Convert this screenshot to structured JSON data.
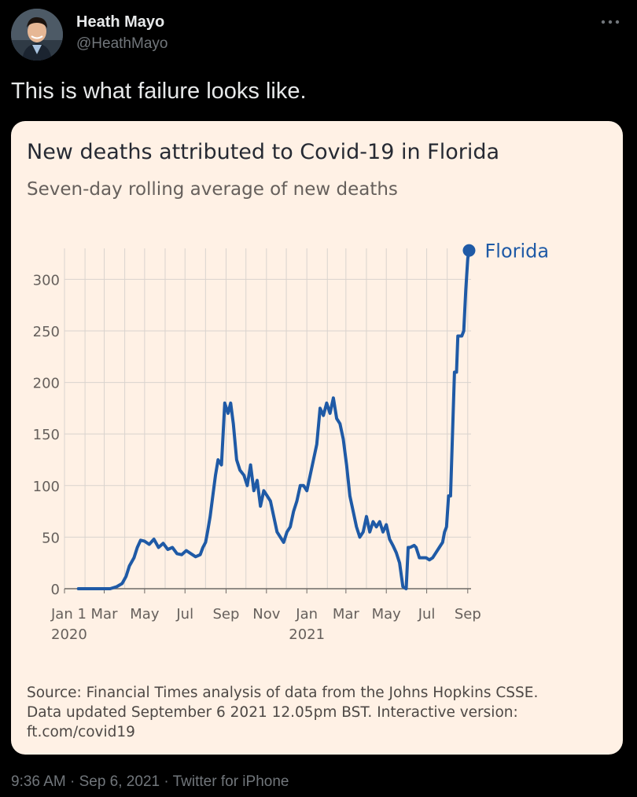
{
  "tweet": {
    "author_name": "Heath Mayo",
    "author_handle": "@HeathMayo",
    "text": "This is what failure looks like.",
    "meta": "9:36 AM · Sep 6, 2021 · Twitter for iPhone",
    "more_icon": "ellipsis-icon"
  },
  "card": {
    "source_lines": [
      "Source: Financial Times analysis of data from the Johns Hopkins CSSE.",
      "Data updated September 6 2021 12.05pm BST. Interactive version:",
      "ft.com/covid19"
    ]
  },
  "chart_data": {
    "type": "line",
    "title": "New deaths attributed to Covid-19 in Florida",
    "subtitle": "Seven-day rolling average of new deaths",
    "series": [
      {
        "name": "Florida",
        "color": "#1f5aa6",
        "x": [
          "2020-01-22",
          "2020-03-01",
          "2020-03-10",
          "2020-03-20",
          "2020-03-28",
          "2020-04-03",
          "2020-04-08",
          "2020-04-15",
          "2020-04-20",
          "2020-04-25",
          "2020-05-01",
          "2020-05-08",
          "2020-05-15",
          "2020-05-22",
          "2020-05-29",
          "2020-06-05",
          "2020-06-12",
          "2020-06-19",
          "2020-06-26",
          "2020-07-03",
          "2020-07-10",
          "2020-07-17",
          "2020-07-24",
          "2020-07-28",
          "2020-08-01",
          "2020-08-04",
          "2020-08-08",
          "2020-08-12",
          "2020-08-16",
          "2020-08-20",
          "2020-08-25",
          "2020-08-30",
          "2020-09-04",
          "2020-09-08",
          "2020-09-12",
          "2020-09-17",
          "2020-09-22",
          "2020-09-28",
          "2020-10-03",
          "2020-10-08",
          "2020-10-13",
          "2020-10-18",
          "2020-10-23",
          "2020-10-28",
          "2020-11-02",
          "2020-11-07",
          "2020-11-12",
          "2020-11-17",
          "2020-11-22",
          "2020-11-27",
          "2020-12-02",
          "2020-12-07",
          "2020-12-12",
          "2020-12-17",
          "2020-12-22",
          "2020-12-27",
          "2021-01-01",
          "2021-01-06",
          "2021-01-11",
          "2021-01-16",
          "2021-01-21",
          "2021-01-26",
          "2021-01-31",
          "2021-02-05",
          "2021-02-10",
          "2021-02-15",
          "2021-02-20",
          "2021-02-25",
          "2021-03-02",
          "2021-03-07",
          "2021-03-12",
          "2021-03-17",
          "2021-03-22",
          "2021-03-27",
          "2021-04-01",
          "2021-04-06",
          "2021-04-11",
          "2021-04-16",
          "2021-04-21",
          "2021-04-26",
          "2021-05-01",
          "2021-05-06",
          "2021-05-11",
          "2021-05-16",
          "2021-05-21",
          "2021-05-26",
          "2021-05-31",
          "2021-06-03",
          "2021-06-06",
          "2021-06-09",
          "2021-06-12",
          "2021-06-15",
          "2021-06-20",
          "2021-06-25",
          "2021-06-30",
          "2021-07-05",
          "2021-07-10",
          "2021-07-15",
          "2021-07-20",
          "2021-07-25",
          "2021-07-28",
          "2021-07-31",
          "2021-08-03",
          "2021-08-06",
          "2021-08-09",
          "2021-08-12",
          "2021-08-15",
          "2021-08-17",
          "2021-08-20",
          "2021-08-23",
          "2021-08-26",
          "2021-08-29",
          "2021-09-01",
          "2021-09-03"
        ],
        "values": [
          0,
          0,
          0,
          2,
          5,
          12,
          22,
          30,
          40,
          47,
          46,
          43,
          48,
          40,
          44,
          38,
          40,
          34,
          33,
          37,
          34,
          31,
          33,
          40,
          45,
          55,
          70,
          90,
          110,
          125,
          120,
          180,
          170,
          180,
          160,
          125,
          115,
          110,
          100,
          120,
          95,
          105,
          80,
          95,
          90,
          85,
          70,
          55,
          50,
          45,
          55,
          60,
          75,
          85,
          100,
          100,
          95,
          110,
          125,
          140,
          175,
          168,
          180,
          170,
          185,
          165,
          160,
          145,
          120,
          90,
          75,
          60,
          50,
          55,
          70,
          55,
          65,
          60,
          65,
          55,
          62,
          48,
          42,
          35,
          25,
          2,
          0,
          40,
          40,
          41,
          42,
          40,
          30,
          30,
          30,
          28,
          30,
          35,
          40,
          45,
          55,
          60,
          90,
          90,
          150,
          210,
          210,
          245,
          245,
          245,
          250,
          290,
          320,
          328
        ],
        "end_label": "Florida"
      }
    ],
    "x_ticks": [
      {
        "date": "2020-01-01",
        "label": "Jan 1",
        "year": "2020"
      },
      {
        "date": "2020-03-01",
        "label": "Mar",
        "year": ""
      },
      {
        "date": "2020-05-01",
        "label": "May",
        "year": ""
      },
      {
        "date": "2020-07-01",
        "label": "Jul",
        "year": ""
      },
      {
        "date": "2020-09-01",
        "label": "Sep",
        "year": ""
      },
      {
        "date": "2020-11-01",
        "label": "Nov",
        "year": ""
      },
      {
        "date": "2021-01-01",
        "label": "Jan",
        "year": "2021"
      },
      {
        "date": "2021-03-01",
        "label": "Mar",
        "year": ""
      },
      {
        "date": "2021-05-01",
        "label": "May",
        "year": ""
      },
      {
        "date": "2021-07-01",
        "label": "Jul",
        "year": ""
      },
      {
        "date": "2021-09-01",
        "label": "Sep",
        "year": ""
      }
    ],
    "y_ticks": [
      0,
      50,
      100,
      150,
      200,
      250,
      300
    ],
    "ylim": [
      0,
      330
    ],
    "xlim": [
      "2020-01-01",
      "2021-09-06"
    ],
    "grid": true,
    "colors": {
      "background": "#fff1e5",
      "grid": "#d9d3ce",
      "axis": "#6f6a66",
      "text": "#66605c"
    }
  }
}
